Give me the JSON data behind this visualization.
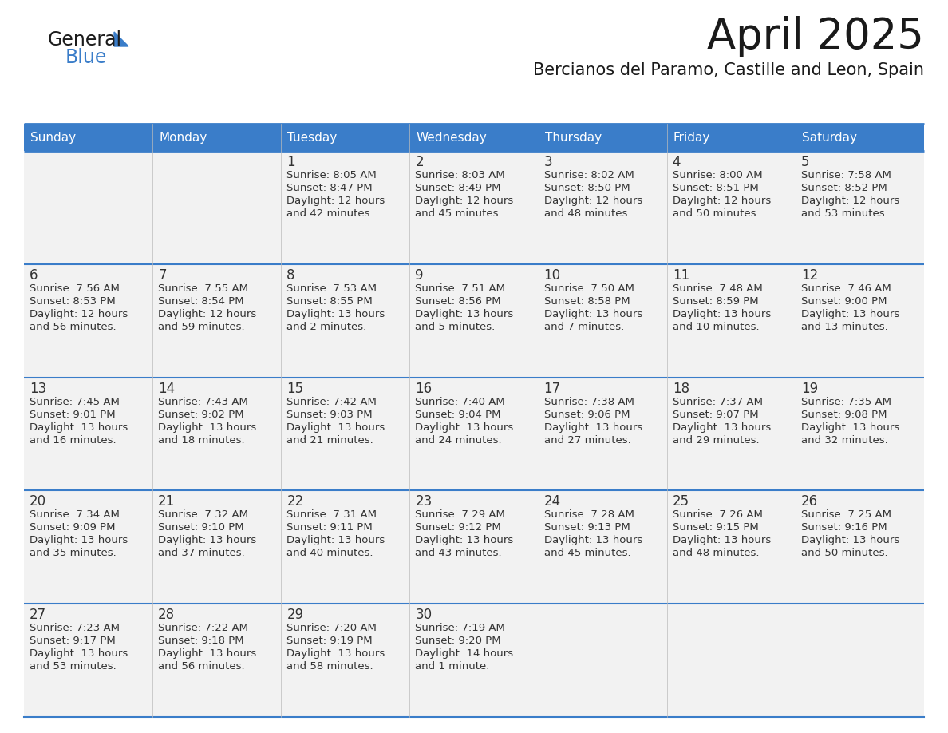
{
  "title": "April 2025",
  "subtitle": "Bercianos del Paramo, Castille and Leon, Spain",
  "days_of_week": [
    "Sunday",
    "Monday",
    "Tuesday",
    "Wednesday",
    "Thursday",
    "Friday",
    "Saturday"
  ],
  "header_bg": "#3A7DC9",
  "header_text": "#FFFFFF",
  "cell_bg": "#F2F2F2",
  "cell_border": "#3A7DC9",
  "text_color": "#333333",
  "title_color": "#1a1a1a",
  "subtitle_color": "#1a1a1a",
  "logo_general_color": "#1a1a1a",
  "logo_blue_color": "#3A7DC9",
  "logo_triangle_color": "#3A7DC9",
  "calendar": [
    [
      {
        "day": "",
        "sunrise": "",
        "sunset": "",
        "daylight": ""
      },
      {
        "day": "",
        "sunrise": "",
        "sunset": "",
        "daylight": ""
      },
      {
        "day": "1",
        "sunrise": "Sunrise: 8:05 AM",
        "sunset": "Sunset: 8:47 PM",
        "daylight": "Daylight: 12 hours\nand 42 minutes."
      },
      {
        "day": "2",
        "sunrise": "Sunrise: 8:03 AM",
        "sunset": "Sunset: 8:49 PM",
        "daylight": "Daylight: 12 hours\nand 45 minutes."
      },
      {
        "day": "3",
        "sunrise": "Sunrise: 8:02 AM",
        "sunset": "Sunset: 8:50 PM",
        "daylight": "Daylight: 12 hours\nand 48 minutes."
      },
      {
        "day": "4",
        "sunrise": "Sunrise: 8:00 AM",
        "sunset": "Sunset: 8:51 PM",
        "daylight": "Daylight: 12 hours\nand 50 minutes."
      },
      {
        "day": "5",
        "sunrise": "Sunrise: 7:58 AM",
        "sunset": "Sunset: 8:52 PM",
        "daylight": "Daylight: 12 hours\nand 53 minutes."
      }
    ],
    [
      {
        "day": "6",
        "sunrise": "Sunrise: 7:56 AM",
        "sunset": "Sunset: 8:53 PM",
        "daylight": "Daylight: 12 hours\nand 56 minutes."
      },
      {
        "day": "7",
        "sunrise": "Sunrise: 7:55 AM",
        "sunset": "Sunset: 8:54 PM",
        "daylight": "Daylight: 12 hours\nand 59 minutes."
      },
      {
        "day": "8",
        "sunrise": "Sunrise: 7:53 AM",
        "sunset": "Sunset: 8:55 PM",
        "daylight": "Daylight: 13 hours\nand 2 minutes."
      },
      {
        "day": "9",
        "sunrise": "Sunrise: 7:51 AM",
        "sunset": "Sunset: 8:56 PM",
        "daylight": "Daylight: 13 hours\nand 5 minutes."
      },
      {
        "day": "10",
        "sunrise": "Sunrise: 7:50 AM",
        "sunset": "Sunset: 8:58 PM",
        "daylight": "Daylight: 13 hours\nand 7 minutes."
      },
      {
        "day": "11",
        "sunrise": "Sunrise: 7:48 AM",
        "sunset": "Sunset: 8:59 PM",
        "daylight": "Daylight: 13 hours\nand 10 minutes."
      },
      {
        "day": "12",
        "sunrise": "Sunrise: 7:46 AM",
        "sunset": "Sunset: 9:00 PM",
        "daylight": "Daylight: 13 hours\nand 13 minutes."
      }
    ],
    [
      {
        "day": "13",
        "sunrise": "Sunrise: 7:45 AM",
        "sunset": "Sunset: 9:01 PM",
        "daylight": "Daylight: 13 hours\nand 16 minutes."
      },
      {
        "day": "14",
        "sunrise": "Sunrise: 7:43 AM",
        "sunset": "Sunset: 9:02 PM",
        "daylight": "Daylight: 13 hours\nand 18 minutes."
      },
      {
        "day": "15",
        "sunrise": "Sunrise: 7:42 AM",
        "sunset": "Sunset: 9:03 PM",
        "daylight": "Daylight: 13 hours\nand 21 minutes."
      },
      {
        "day": "16",
        "sunrise": "Sunrise: 7:40 AM",
        "sunset": "Sunset: 9:04 PM",
        "daylight": "Daylight: 13 hours\nand 24 minutes."
      },
      {
        "day": "17",
        "sunrise": "Sunrise: 7:38 AM",
        "sunset": "Sunset: 9:06 PM",
        "daylight": "Daylight: 13 hours\nand 27 minutes."
      },
      {
        "day": "18",
        "sunrise": "Sunrise: 7:37 AM",
        "sunset": "Sunset: 9:07 PM",
        "daylight": "Daylight: 13 hours\nand 29 minutes."
      },
      {
        "day": "19",
        "sunrise": "Sunrise: 7:35 AM",
        "sunset": "Sunset: 9:08 PM",
        "daylight": "Daylight: 13 hours\nand 32 minutes."
      }
    ],
    [
      {
        "day": "20",
        "sunrise": "Sunrise: 7:34 AM",
        "sunset": "Sunset: 9:09 PM",
        "daylight": "Daylight: 13 hours\nand 35 minutes."
      },
      {
        "day": "21",
        "sunrise": "Sunrise: 7:32 AM",
        "sunset": "Sunset: 9:10 PM",
        "daylight": "Daylight: 13 hours\nand 37 minutes."
      },
      {
        "day": "22",
        "sunrise": "Sunrise: 7:31 AM",
        "sunset": "Sunset: 9:11 PM",
        "daylight": "Daylight: 13 hours\nand 40 minutes."
      },
      {
        "day": "23",
        "sunrise": "Sunrise: 7:29 AM",
        "sunset": "Sunset: 9:12 PM",
        "daylight": "Daylight: 13 hours\nand 43 minutes."
      },
      {
        "day": "24",
        "sunrise": "Sunrise: 7:28 AM",
        "sunset": "Sunset: 9:13 PM",
        "daylight": "Daylight: 13 hours\nand 45 minutes."
      },
      {
        "day": "25",
        "sunrise": "Sunrise: 7:26 AM",
        "sunset": "Sunset: 9:15 PM",
        "daylight": "Daylight: 13 hours\nand 48 minutes."
      },
      {
        "day": "26",
        "sunrise": "Sunrise: 7:25 AM",
        "sunset": "Sunset: 9:16 PM",
        "daylight": "Daylight: 13 hours\nand 50 minutes."
      }
    ],
    [
      {
        "day": "27",
        "sunrise": "Sunrise: 7:23 AM",
        "sunset": "Sunset: 9:17 PM",
        "daylight": "Daylight: 13 hours\nand 53 minutes."
      },
      {
        "day": "28",
        "sunrise": "Sunrise: 7:22 AM",
        "sunset": "Sunset: 9:18 PM",
        "daylight": "Daylight: 13 hours\nand 56 minutes."
      },
      {
        "day": "29",
        "sunrise": "Sunrise: 7:20 AM",
        "sunset": "Sunset: 9:19 PM",
        "daylight": "Daylight: 13 hours\nand 58 minutes."
      },
      {
        "day": "30",
        "sunrise": "Sunrise: 7:19 AM",
        "sunset": "Sunset: 9:20 PM",
        "daylight": "Daylight: 14 hours\nand 1 minute."
      },
      {
        "day": "",
        "sunrise": "",
        "sunset": "",
        "daylight": ""
      },
      {
        "day": "",
        "sunrise": "",
        "sunset": "",
        "daylight": ""
      },
      {
        "day": "",
        "sunrise": "",
        "sunset": "",
        "daylight": ""
      }
    ]
  ]
}
